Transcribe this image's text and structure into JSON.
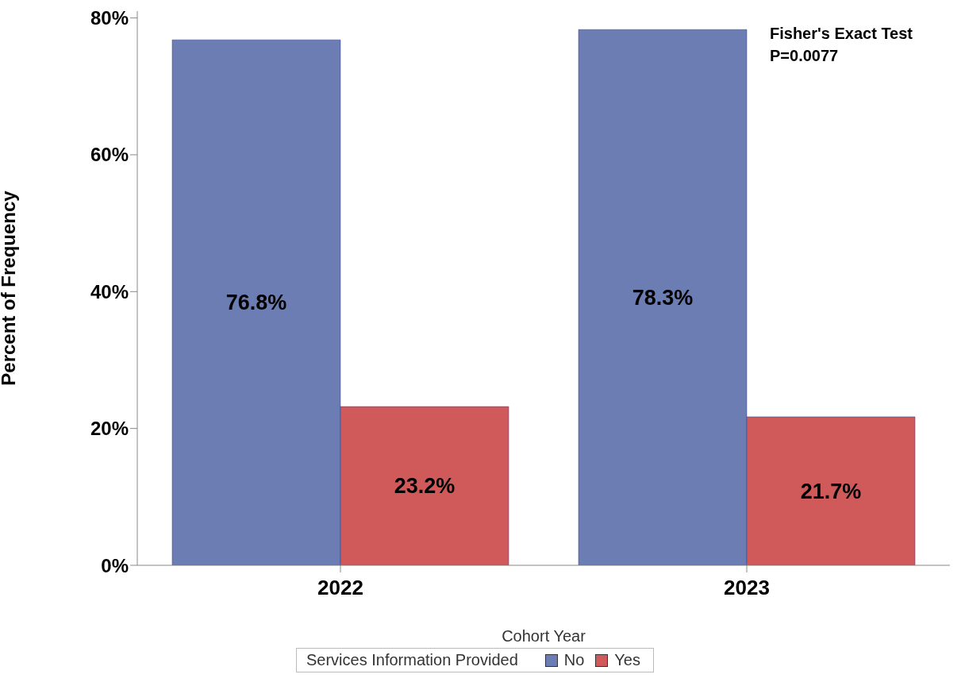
{
  "chart_data": {
    "type": "bar",
    "xlabel": "Cohort Year",
    "ylabel": "Percent of Frequency",
    "legend_title": "Services Information Provided",
    "categories": [
      "2022",
      "2023"
    ],
    "series": [
      {
        "name": "No",
        "color": "#6b7db3",
        "values": [
          76.8,
          78.3
        ],
        "value_labels": [
          "76.8%",
          "78.3%"
        ]
      },
      {
        "name": "Yes",
        "color": "#d05a5a",
        "values": [
          23.2,
          21.7
        ],
        "value_labels": [
          "23.2%",
          "21.7%"
        ]
      }
    ],
    "ylim": [
      0,
      81
    ],
    "yticks": [
      {
        "value": 0,
        "label": "0%"
      },
      {
        "value": 20,
        "label": "20%"
      },
      {
        "value": 40,
        "label": "40%"
      },
      {
        "value": 60,
        "label": "60%"
      },
      {
        "value": 80,
        "label": "80%"
      }
    ],
    "legend": "bottom",
    "annotations": [
      "Fisher's Exact Test",
      "P=0.0077"
    ]
  }
}
